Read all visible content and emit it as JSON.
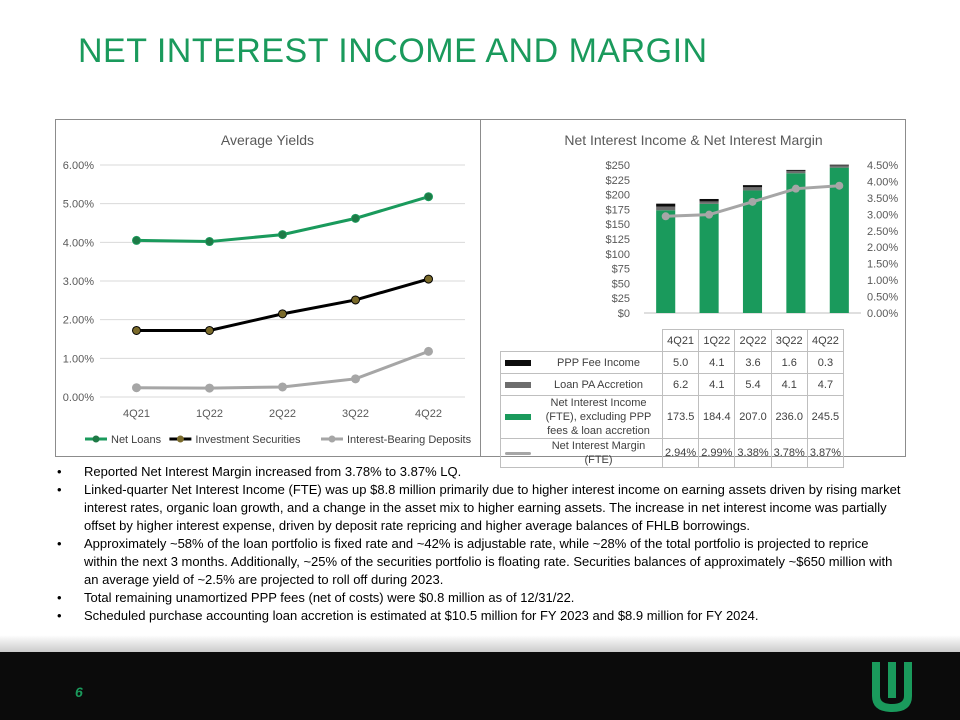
{
  "title": "NET INTEREST INCOME AND MARGIN",
  "page_number": "6",
  "colors": {
    "green": "#1a9a5c",
    "dark_green": "#1e7a46",
    "black": "#000000",
    "olive": "#7a6a2a",
    "gray": "#a6a6a6",
    "accretion": "#6d6d6d",
    "ppp": "#0d0d0d"
  },
  "bullets": [
    "Reported Net Interest Margin increased from 3.78% to 3.87% LQ.",
    "Linked-quarter Net Interest Income (FTE) was up $8.8 million primarily due to higher interest income on earning assets driven by rising market interest rates, organic loan growth, and a change in the asset mix to higher earning assets. The increase in net interest income was partially offset by higher interest expense, driven by deposit rate repricing and higher average balances of FHLB borrowings.",
    "Approximately ~58% of the loan portfolio is fixed rate and ~42% is adjustable rate, while ~28% of the total portfolio is projected to reprice within the next 3 months. Additionally, ~25% of the securities portfolio is floating rate.  Securities balances of approximately ~$650 million with an average yield of ~2.5% are projected to roll off during 2023.",
    "Total remaining unamortized PPP fees (net of costs) were $0.8 million as of 12/31/22.",
    "Scheduled purchase accounting loan accretion is estimated at $10.5 million for FY 2023 and $8.9 million for FY 2024."
  ],
  "chart_data": [
    {
      "type": "line",
      "title": "Average Yields",
      "categories": [
        "4Q21",
        "1Q22",
        "2Q22",
        "3Q22",
        "4Q22"
      ],
      "y_ticks": [
        "6.00%",
        "5.00%",
        "4.00%",
        "3.00%",
        "2.00%",
        "1.00%",
        "0.00%"
      ],
      "ylim": [
        0,
        6
      ],
      "grid": true,
      "legend_position": "bottom",
      "series": [
        {
          "name": "Net Loans",
          "values": [
            4.05,
            4.02,
            4.2,
            4.62,
            5.18
          ],
          "color": "#1a9a5c",
          "marker": "#1e7a46"
        },
        {
          "name": "Investment Securities",
          "values": [
            1.72,
            1.72,
            2.15,
            2.51,
            3.05
          ],
          "color": "#000000",
          "marker": "#7a6a2a"
        },
        {
          "name": "Interest-Bearing Deposits",
          "values": [
            0.24,
            0.23,
            0.26,
            0.47,
            1.18
          ],
          "color": "#a6a6a6",
          "marker": "#a6a6a6"
        }
      ]
    },
    {
      "type": "bar",
      "stacked": true,
      "title": "Net Interest Income & Net Interest Margin",
      "categories": [
        "4Q21",
        "1Q22",
        "2Q22",
        "3Q22",
        "4Q22"
      ],
      "y_ticks_left": [
        "$250",
        "$225",
        "$200",
        "$175",
        "$150",
        "$125",
        "$100",
        "$75",
        "$50",
        "$25",
        "$0"
      ],
      "y_ticks_right": [
        "4.50%",
        "4.00%",
        "3.50%",
        "3.00%",
        "2.50%",
        "2.00%",
        "1.50%",
        "1.00%",
        "0.50%",
        "0.00%"
      ],
      "ylim_left": [
        0,
        250
      ],
      "ylim_right": [
        0,
        4.5
      ],
      "series": [
        {
          "name": "PPP Fee Income",
          "values": [
            5.0,
            4.1,
            3.6,
            1.6,
            0.3
          ],
          "display": [
            "5.0",
            "4.1",
            "3.6",
            "1.6",
            "0.3"
          ],
          "color": "#0d0d0d"
        },
        {
          "name": "Loan PA Accretion",
          "values": [
            6.2,
            4.1,
            5.4,
            4.1,
            4.7
          ],
          "display": [
            "6.2",
            "4.1",
            "5.4",
            "4.1",
            "4.7"
          ],
          "color": "#6d6d6d"
        },
        {
          "name": "Net Interest Income (FTE), excluding PPP fees & loan accretion",
          "values": [
            173.5,
            184.4,
            207.0,
            236.0,
            245.5
          ],
          "display": [
            "173.5",
            "184.4",
            "207.0",
            "236.0",
            "245.5"
          ],
          "color": "#1a9a5c"
        }
      ],
      "line_series": {
        "name": "Net Interest Margin (FTE)",
        "values": [
          2.94,
          2.99,
          3.38,
          3.78,
          3.87
        ],
        "display": [
          "2.94%",
          "2.99%",
          "3.38%",
          "3.78%",
          "3.87%"
        ],
        "color": "#a6a6a6"
      }
    }
  ]
}
